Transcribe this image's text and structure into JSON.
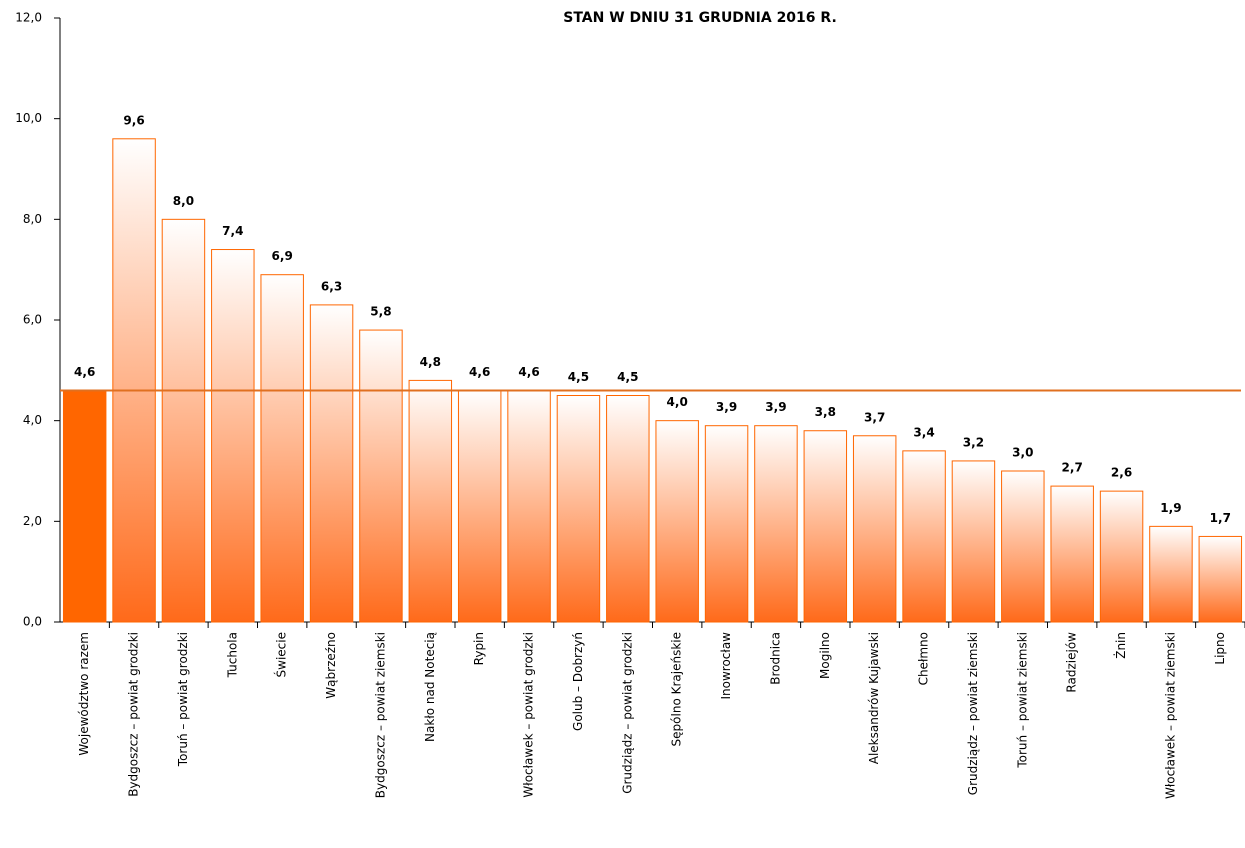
{
  "chart_data": {
    "type": "bar",
    "title": "STAN W DNIU 31 GRUDNIA 2016 R.",
    "categories": [
      "Województwo razem",
      "Bydgoszcz – powiat grodzki",
      "Toruń – powiat grodzki",
      "Tuchola",
      "Świecie",
      "Wąbrzeźno",
      "Bydgoszcz – powiat ziemski",
      "Nakło nad Notecią",
      "Rypin",
      "Włocławek – powiat grodzki",
      "Golub – Dobrzyń",
      "Grudziądz – powiat grodzki",
      "Sępólno Krajeńskie",
      "Inowrocław",
      "Brodnica",
      "Mogilno",
      "Aleksandrów Kujawski",
      "Chełmno",
      "Grudziądz – powiat ziemski",
      "Toruń – powiat ziemski",
      "Radziejów",
      "Żnin",
      "Włocławek – powiat ziemski",
      "Lipno"
    ],
    "values": [
      4.6,
      9.6,
      8.0,
      7.4,
      6.9,
      6.3,
      5.8,
      4.8,
      4.6,
      4.6,
      4.5,
      4.5,
      4.0,
      3.9,
      3.9,
      3.8,
      3.7,
      3.4,
      3.2,
      3.0,
      2.7,
      2.6,
      1.9,
      1.7
    ],
    "value_labels": [
      "4,6",
      "9,6",
      "8,0",
      "7,4",
      "6,9",
      "6,3",
      "5,8",
      "4,8",
      "4,6",
      "4,6",
      "4,5",
      "4,5",
      "4,0",
      "3,9",
      "3,9",
      "3,8",
      "3,7",
      "3,4",
      "3,2",
      "3,0",
      "2,7",
      "2,6",
      "1,9",
      "1,7"
    ],
    "color": "#ff6600",
    "highlight_index": 0,
    "hline": 4.6,
    "hline_color": "#e07020",
    "ylim": [
      0,
      12
    ],
    "yticks": [
      {
        "value": 0,
        "label": "0,0"
      },
      {
        "value": 2,
        "label": "2,0"
      },
      {
        "value": 4,
        "label": "4,0"
      },
      {
        "value": 6,
        "label": "6,0"
      },
      {
        "value": 8,
        "label": "8,0"
      },
      {
        "value": 10,
        "label": "10,0"
      },
      {
        "value": 12,
        "label": "12,0"
      }
    ]
  }
}
